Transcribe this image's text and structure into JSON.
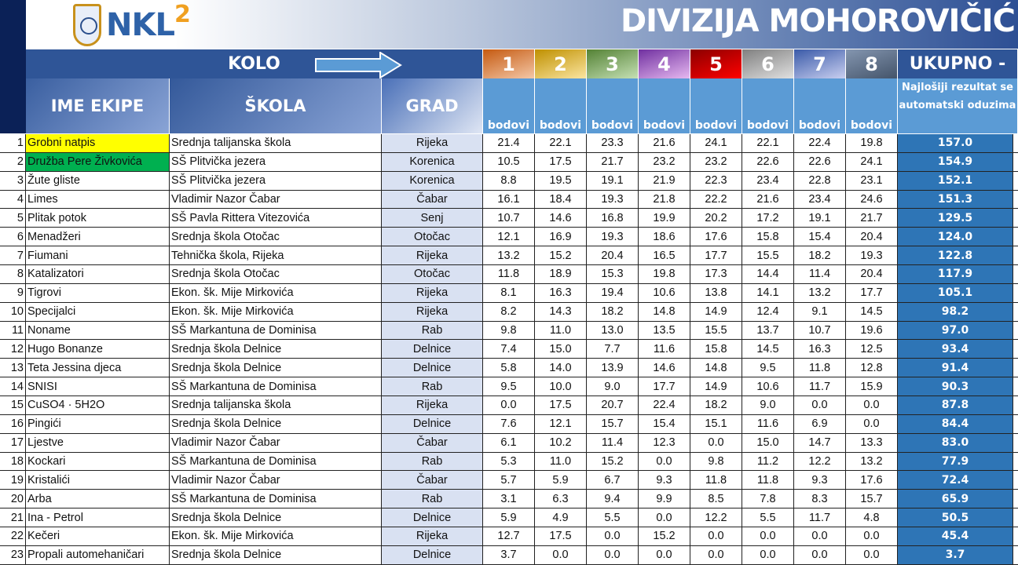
{
  "header": {
    "logo_text": "NKL",
    "logo_sup": "2",
    "title": "DIVIZIJA MOHOROVIČIĆ",
    "kolo": "KOLO",
    "ukupno": "UKUPNO -",
    "note": "Najlošiji rezultat se automatski oduzima"
  },
  "columns": {
    "ime": "IME EKIPE",
    "skola": "ŠKOLA",
    "grad": "GRAD",
    "points": "bodovi"
  },
  "rounds": [
    {
      "label": "1",
      "color": "#c55a11",
      "color2": "#f4c7a6"
    },
    {
      "label": "2",
      "color": "#bf9000",
      "color2": "#fbe5a0"
    },
    {
      "label": "3",
      "color": "#548235",
      "color2": "#c5e0b4"
    },
    {
      "label": "4",
      "color": "#7030a0",
      "color2": "#e6b8f0"
    },
    {
      "label": "5",
      "color": "#8b0000",
      "color2": "#ff0000"
    },
    {
      "label": "6",
      "color": "#808080",
      "color2": "#e0e0e0"
    },
    {
      "label": "7",
      "color": "#3a5aa8",
      "color2": "#c9cff0"
    },
    {
      "label": "8",
      "color": "#8496b0",
      "color2": "#44546a"
    }
  ],
  "highlight_colors": {
    "1": "#ffff00",
    "2": "#00b050"
  },
  "teams": [
    {
      "n": "1",
      "name": "Grobni natpis",
      "school": "Srednja talijanska škola",
      "city": "Rijeka",
      "scores": [
        "21.4",
        "22.1",
        "23.3",
        "21.6",
        "24.1",
        "22.1",
        "22.4",
        "19.8"
      ],
      "total": "157.0"
    },
    {
      "n": "2",
      "name": "Družba Pere Živkovića",
      "school": "SŠ Plitvička jezera",
      "city": "Korenica",
      "scores": [
        "10.5",
        "17.5",
        "21.7",
        "23.2",
        "23.2",
        "22.6",
        "22.6",
        "24.1"
      ],
      "total": "154.9"
    },
    {
      "n": "3",
      "name": "Žute gliste",
      "school": "SŠ Plitvička jezera",
      "city": "Korenica",
      "scores": [
        "8.8",
        "19.5",
        "19.1",
        "21.9",
        "22.3",
        "23.4",
        "22.8",
        "23.1"
      ],
      "total": "152.1"
    },
    {
      "n": "4",
      "name": "Limes",
      "school": "Vladimir Nazor Čabar",
      "city": "Čabar",
      "scores": [
        "16.1",
        "18.4",
        "19.3",
        "21.8",
        "22.2",
        "21.6",
        "23.4",
        "24.6"
      ],
      "total": "151.3"
    },
    {
      "n": "5",
      "name": "Plitak potok",
      "school": "SŠ Pavla Rittera Vitezovića",
      "city": "Senj",
      "scores": [
        "10.7",
        "14.6",
        "16.8",
        "19.9",
        "20.2",
        "17.2",
        "19.1",
        "21.7"
      ],
      "total": "129.5"
    },
    {
      "n": "6",
      "name": "Menadžeri",
      "school": "Srednja škola Otočac",
      "city": "Otočac",
      "scores": [
        "12.1",
        "16.9",
        "19.3",
        "18.6",
        "17.6",
        "15.8",
        "15.4",
        "20.4"
      ],
      "total": "124.0"
    },
    {
      "n": "7",
      "name": "Fiumani",
      "school": "Tehnička škola, Rijeka",
      "city": "Rijeka",
      "scores": [
        "13.2",
        "15.2",
        "20.4",
        "16.5",
        "17.7",
        "15.5",
        "18.2",
        "19.3"
      ],
      "total": "122.8"
    },
    {
      "n": "8",
      "name": "Katalizatori",
      "school": "Srednja škola Otočac",
      "city": "Otočac",
      "scores": [
        "11.8",
        "18.9",
        "15.3",
        "19.8",
        "17.3",
        "14.4",
        "11.4",
        "20.4"
      ],
      "total": "117.9"
    },
    {
      "n": "9",
      "name": "Tigrovi",
      "school": "Ekon. šk. Mije Mirkovića",
      "city": "Rijeka",
      "scores": [
        "8.1",
        "16.3",
        "19.4",
        "10.6",
        "13.8",
        "14.1",
        "13.2",
        "17.7"
      ],
      "total": "105.1"
    },
    {
      "n": "10",
      "name": "Specijalci",
      "school": "Ekon. šk. Mije Mirkovića",
      "city": "Rijeka",
      "scores": [
        "8.2",
        "14.3",
        "18.2",
        "14.8",
        "14.9",
        "12.4",
        "9.1",
        "14.5"
      ],
      "total": "98.2"
    },
    {
      "n": "11",
      "name": "Noname",
      "school": "SŠ Markantuna de Dominisa",
      "city": "Rab",
      "scores": [
        "9.8",
        "11.0",
        "13.0",
        "13.5",
        "15.5",
        "13.7",
        "10.7",
        "19.6"
      ],
      "total": "97.0"
    },
    {
      "n": "12",
      "name": "Hugo Bonanze",
      "school": "Srednja škola Delnice",
      "city": "Delnice",
      "scores": [
        "7.4",
        "15.0",
        "7.7",
        "11.6",
        "15.8",
        "14.5",
        "16.3",
        "12.5"
      ],
      "total": "93.4"
    },
    {
      "n": "13",
      "name": "Teta Jessina djeca",
      "school": "Srednja škola Delnice",
      "city": "Delnice",
      "scores": [
        "5.8",
        "14.0",
        "13.9",
        "14.6",
        "14.8",
        "9.5",
        "11.8",
        "12.8"
      ],
      "total": "91.4"
    },
    {
      "n": "14",
      "name": "SNISI",
      "school": "SŠ Markantuna de Dominisa",
      "city": "Rab",
      "scores": [
        "9.5",
        "10.0",
        "9.0",
        "17.7",
        "14.9",
        "10.6",
        "11.7",
        "15.9"
      ],
      "total": "90.3"
    },
    {
      "n": "15",
      "name": "CuSO4 · 5H2O",
      "school": "Srednja talijanska škola",
      "city": "Rijeka",
      "scores": [
        "0.0",
        "17.5",
        "20.7",
        "22.4",
        "18.2",
        "9.0",
        "0.0",
        "0.0"
      ],
      "total": "87.8"
    },
    {
      "n": "16",
      "name": "Pingići",
      "school": "Srednja škola Delnice",
      "city": "Delnice",
      "scores": [
        "7.6",
        "12.1",
        "15.7",
        "15.4",
        "15.1",
        "11.6",
        "6.9",
        "0.0"
      ],
      "total": "84.4"
    },
    {
      "n": "17",
      "name": "Ljestve",
      "school": "Vladimir Nazor Čabar",
      "city": "Čabar",
      "scores": [
        "6.1",
        "10.2",
        "11.4",
        "12.3",
        "0.0",
        "15.0",
        "14.7",
        "13.3"
      ],
      "total": "83.0"
    },
    {
      "n": "18",
      "name": "Kockari",
      "school": "SŠ Markantuna de Dominisa",
      "city": "Rab",
      "scores": [
        "5.3",
        "11.0",
        "15.2",
        "0.0",
        "9.8",
        "11.2",
        "12.2",
        "13.2"
      ],
      "total": "77.9"
    },
    {
      "n": "19",
      "name": "Kristalići",
      "school": "Vladimir Nazor Čabar",
      "city": "Čabar",
      "scores": [
        "5.7",
        "5.9",
        "6.7",
        "9.3",
        "11.8",
        "11.8",
        "9.3",
        "17.6"
      ],
      "total": "72.4"
    },
    {
      "n": "20",
      "name": "Arba",
      "school": "SŠ Markantuna de Dominisa",
      "city": "Rab",
      "scores": [
        "3.1",
        "6.3",
        "9.4",
        "9.9",
        "8.5",
        "7.8",
        "8.3",
        "15.7"
      ],
      "total": "65.9"
    },
    {
      "n": "21",
      "name": "Ina - Petrol",
      "school": "Srednja škola Delnice",
      "city": "Delnice",
      "scores": [
        "5.9",
        "4.9",
        "5.5",
        "0.0",
        "12.2",
        "5.5",
        "11.7",
        "4.8"
      ],
      "total": "50.5"
    },
    {
      "n": "22",
      "name": "Kečeri",
      "school": "Ekon. šk. Mije Mirkovića",
      "city": "Rijeka",
      "scores": [
        "12.7",
        "17.5",
        "0.0",
        "15.2",
        "0.0",
        "0.0",
        "0.0",
        "0.0"
      ],
      "total": "45.4"
    },
    {
      "n": "23",
      "name": "Propali automehaničari",
      "school": "Srednja škola Delnice",
      "city": "Delnice",
      "scores": [
        "3.7",
        "0.0",
        "0.0",
        "0.0",
        "0.0",
        "0.0",
        "0.0",
        "0.0"
      ],
      "total": "3.7"
    }
  ]
}
